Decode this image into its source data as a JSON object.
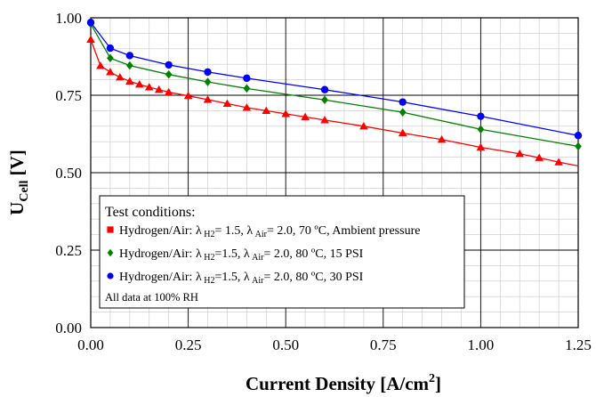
{
  "chart_data": {
    "type": "line",
    "xlabel": "Current Density [A/cm",
    "xlabel_sup": "2",
    "xlabel_end": "]",
    "ylabel": "U",
    "ylabel_sub": "Cell",
    "ylabel_end": " [V]",
    "xlim": [
      0,
      1.25
    ],
    "ylim": [
      0,
      1.0
    ],
    "xticks": [
      "0.00",
      "0.25",
      "0.50",
      "0.75",
      "1.00",
      "1.25"
    ],
    "yticks": [
      "0.00",
      "0.25",
      "0.50",
      "0.75",
      "1.00"
    ],
    "grid": "major and minor",
    "legend": {
      "placement": "bottom-left",
      "title": "Test conditions:",
      "entries": [
        {
          "prefix": "Hydrogen/Air: ",
          "lam": "λ",
          "sub1": " H2",
          "mid": "= 1.5, ",
          "lam2": "λ",
          "sub2": " Air",
          "rest": "= 2.0, 70 ºC, Ambient pressure"
        },
        {
          "prefix": "Hydrogen/Air: ",
          "lam": "λ",
          "sub1": " H2",
          "mid": "=1.5, ",
          "lam2": "λ",
          "sub2": " Air",
          "rest": "= 2.0, 80 ºC, 15 PSI"
        },
        {
          "prefix": "Hydrogen/Air: ",
          "lam": "λ",
          "sub1": " H2",
          "mid": "=1.5, ",
          "lam2": "λ",
          "sub2": " Air",
          "rest": "= 2.0, 80 ºC, 30 PSI"
        }
      ],
      "note": "All data at 100% RH"
    },
    "series": [
      {
        "color": "#ff0000",
        "marker": "triangle",
        "legend_marker": "square",
        "x": [
          0,
          0.025,
          0.05,
          0.075,
          0.1,
          0.125,
          0.15,
          0.175,
          0.2,
          0.25,
          0.3,
          0.35,
          0.4,
          0.45,
          0.5,
          0.55,
          0.6,
          0.7,
          0.8,
          0.9,
          1.0,
          1.1,
          1.15,
          1.2
        ],
        "y": [
          0.93,
          0.845,
          0.825,
          0.808,
          0.795,
          0.785,
          0.776,
          0.768,
          0.76,
          0.748,
          0.736,
          0.723,
          0.71,
          0.7,
          0.69,
          0.68,
          0.67,
          0.65,
          0.628,
          0.607,
          0.582,
          0.561,
          0.548,
          0.534
        ],
        "line_end": [
          1.25,
          0.522
        ]
      },
      {
        "color": "#008000",
        "marker": "diamond",
        "legend_marker": "diamond",
        "x": [
          0,
          0.05,
          0.1,
          0.2,
          0.3,
          0.4,
          0.6,
          0.8,
          1.0,
          1.25
        ],
        "y": [
          0.98,
          0.87,
          0.846,
          0.817,
          0.793,
          0.772,
          0.735,
          0.695,
          0.64,
          0.585
        ]
      },
      {
        "color": "#0000ff",
        "marker": "circle",
        "legend_marker": "circle",
        "x": [
          0,
          0.05,
          0.1,
          0.2,
          0.3,
          0.4,
          0.6,
          0.8,
          1.0,
          1.25
        ],
        "y": [
          0.985,
          0.902,
          0.878,
          0.848,
          0.825,
          0.805,
          0.768,
          0.728,
          0.682,
          0.62
        ]
      }
    ]
  }
}
